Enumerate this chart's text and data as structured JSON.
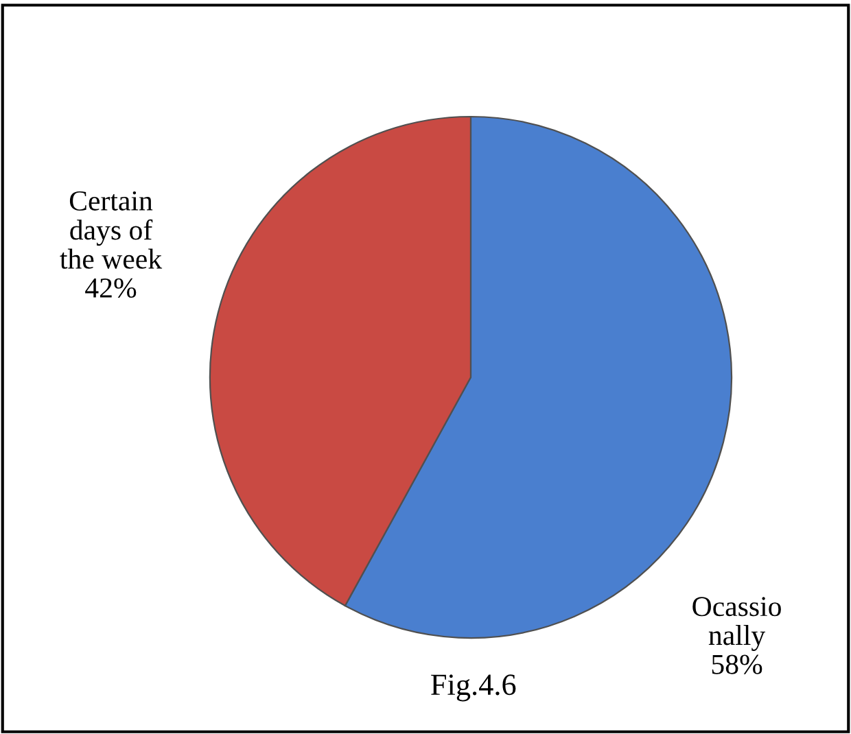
{
  "chart_data": {
    "type": "pie",
    "categories": [
      "Ocassio\nnally",
      "Certain\ndays of\nthe week"
    ],
    "values": [
      58,
      42
    ],
    "colors": [
      "#4a7fcf",
      "#c94a43"
    ],
    "value_labels": [
      "58%",
      "42%"
    ],
    "annotations": [
      "Fig.4.6"
    ],
    "legend": false
  }
}
